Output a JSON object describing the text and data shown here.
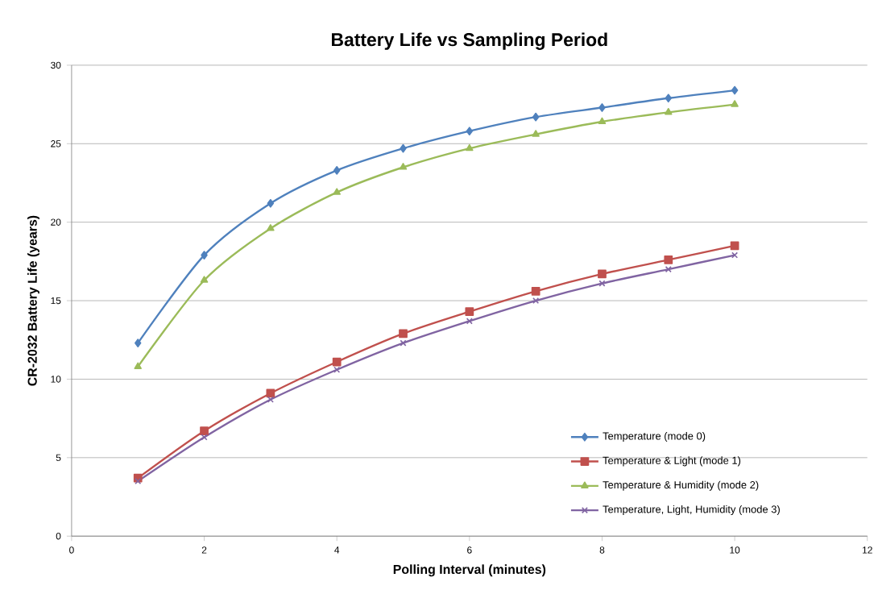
{
  "chart_data": {
    "type": "line",
    "title": "Battery Life vs Sampling Period",
    "xlabel": "Polling Interval (minutes)",
    "ylabel": "CR-2032 Battery Life  (years)",
    "x": [
      1,
      2,
      3,
      4,
      5,
      6,
      7,
      8,
      9,
      10
    ],
    "series": [
      {
        "name": "Temperature (mode 0)",
        "color": "#4f81bd",
        "marker": "diamond",
        "values": [
          12.3,
          17.9,
          21.2,
          23.3,
          24.7,
          25.8,
          26.7,
          27.3,
          27.9,
          28.4
        ]
      },
      {
        "name": "Temperature & Light (mode 1)",
        "color": "#c0504d",
        "marker": "square",
        "values": [
          3.7,
          6.7,
          9.1,
          11.1,
          12.9,
          14.3,
          15.6,
          16.7,
          17.6,
          18.5
        ]
      },
      {
        "name": "Temperature & Humidity (mode 2)",
        "color": "#9bbb59",
        "marker": "triangle",
        "values": [
          10.8,
          16.3,
          19.6,
          21.9,
          23.5,
          24.7,
          25.6,
          26.4,
          27.0,
          27.5
        ]
      },
      {
        "name": "Temperature, Light, Humidity (mode 3)",
        "color": "#8064a2",
        "marker": "cross",
        "values": [
          3.5,
          6.3,
          8.7,
          10.6,
          12.3,
          13.7,
          15.0,
          16.1,
          17.0,
          17.9
        ]
      }
    ],
    "xlim": [
      0,
      12
    ],
    "xticks": [
      0,
      2,
      4,
      6,
      8,
      10,
      12
    ],
    "ylim": [
      0,
      30
    ],
    "yticks": [
      0,
      5,
      10,
      15,
      20,
      25,
      30
    ],
    "grid": "y",
    "legend": "bottom right",
    "line_style": "solid"
  }
}
